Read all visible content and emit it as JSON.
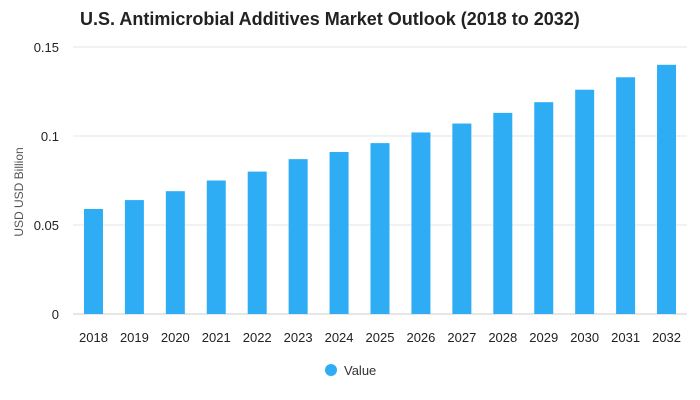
{
  "chart_data": {
    "type": "bar",
    "title": "U.S. Antimicrobial Additives Market Outlook (2018 to 2032)",
    "xlabel": "",
    "ylabel": "USD USD Billion",
    "categories": [
      "2018",
      "2019",
      "2020",
      "2021",
      "2022",
      "2023",
      "2024",
      "2025",
      "2026",
      "2027",
      "2028",
      "2029",
      "2030",
      "2031",
      "2032"
    ],
    "series": [
      {
        "name": "Value",
        "color": "#2EADF5",
        "values": [
          0.059,
          0.064,
          0.069,
          0.075,
          0.08,
          0.087,
          0.091,
          0.096,
          0.102,
          0.107,
          0.113,
          0.119,
          0.126,
          0.133,
          0.14
        ]
      }
    ],
    "ylim": [
      0,
      0.15
    ],
    "yticks": [
      0,
      0.05,
      0.1,
      0.15
    ],
    "ytick_labels": [
      "0",
      "0.05",
      "0.1",
      "0.15"
    ],
    "grid": true,
    "legend": {
      "placement": "bottom-center",
      "entries": [
        "Value"
      ]
    }
  }
}
